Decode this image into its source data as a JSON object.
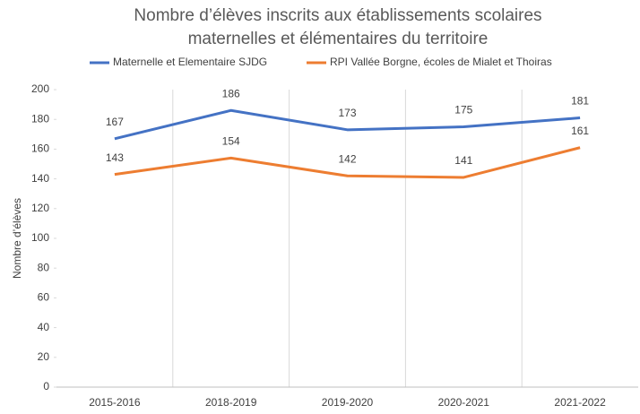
{
  "chart_data": {
    "type": "line",
    "title": [
      "Nombre d’élèves inscrits aux établissements scolaires",
      "maternelles et élémentaires du territoire"
    ],
    "y_label": "Nombre d’élèves",
    "categories": [
      "2015-2016",
      "2018-2019",
      "2019-2020",
      "2020-2021",
      "2021-2022"
    ],
    "series": [
      {
        "name": "Maternelle et Elementaire SJDG",
        "color": "#4472c4",
        "values": [
          167,
          186,
          173,
          175,
          181
        ]
      },
      {
        "name": "RPI Vallée Borgne, écoles de Mialet et Thoiras",
        "color": "#ed7d31",
        "values": [
          143,
          154,
          142,
          141,
          161
        ]
      }
    ],
    "ylim": [
      0,
      200
    ],
    "yticks": [
      0,
      20,
      40,
      60,
      80,
      100,
      120,
      140,
      160,
      180,
      200
    ],
    "legend": "top"
  }
}
